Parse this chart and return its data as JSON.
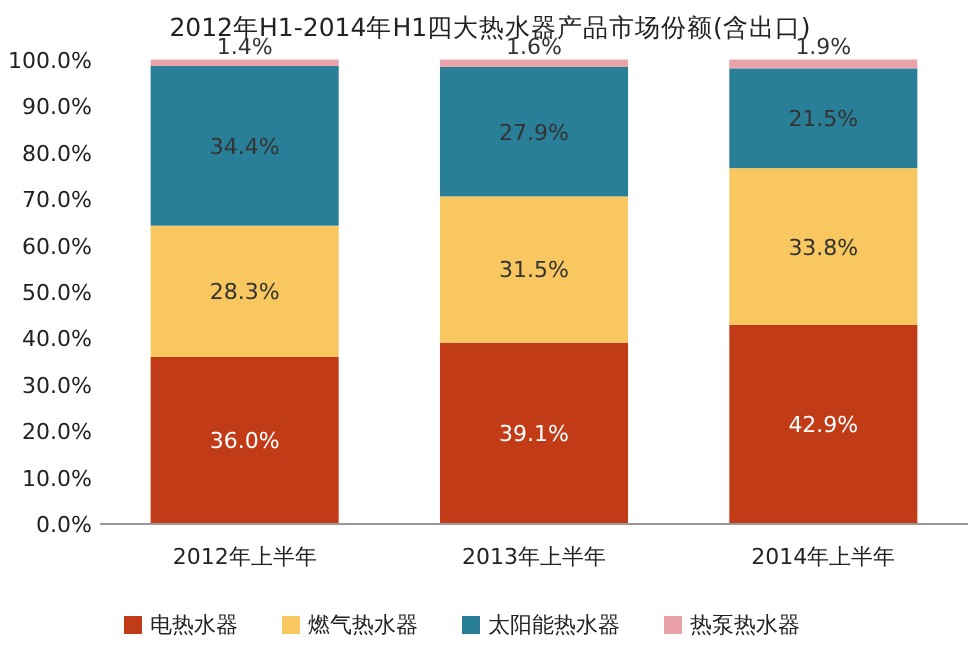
{
  "chart_data": {
    "type": "bar",
    "stacked": true,
    "title": "2012年H1-2014年H1四大热水器产品市场份额(含出口)",
    "categories": [
      "2012年上半年",
      "2013年上半年",
      "2014年上半年"
    ],
    "series": [
      {
        "name": "电热水器",
        "color": "#c23b17",
        "values": [
          36.0,
          39.1,
          42.9
        ],
        "value_labels": [
          "36.0%",
          "39.1%",
          "42.9%"
        ]
      },
      {
        "name": "燃气热水器",
        "color": "#f9c75f",
        "values": [
          28.3,
          31.5,
          33.8
        ],
        "value_labels": [
          "28.3%",
          "31.5%",
          "33.8%"
        ]
      },
      {
        "name": "太阳能热水器",
        "color": "#2a7f98",
        "values": [
          34.4,
          27.9,
          21.5
        ],
        "value_labels": [
          "34.4%",
          "27.9%",
          "21.5%"
        ]
      },
      {
        "name": "热泵热水器",
        "color": "#e9a3a8",
        "values": [
          1.4,
          1.6,
          1.9
        ],
        "value_labels": [
          "1.4%",
          "1.6%",
          "1.9%"
        ]
      }
    ],
    "ylim": [
      0,
      100
    ],
    "yticks": [
      {
        "value": 0,
        "label": "0.0%"
      },
      {
        "value": 10,
        "label": "10.0%"
      },
      {
        "value": 20,
        "label": "20.0%"
      },
      {
        "value": 30,
        "label": "30.0%"
      },
      {
        "value": 40,
        "label": "40.0%"
      },
      {
        "value": 50,
        "label": "50.0%"
      },
      {
        "value": 60,
        "label": "60.0%"
      },
      {
        "value": 70,
        "label": "70.0%"
      },
      {
        "value": 80,
        "label": "80.0%"
      },
      {
        "value": 90,
        "label": "90.0%"
      },
      {
        "value": 100,
        "label": "100.0%"
      }
    ],
    "legend": "bottom"
  }
}
